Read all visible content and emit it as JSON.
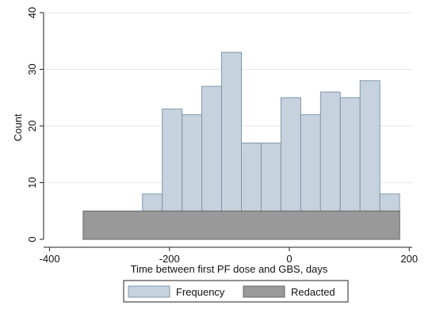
{
  "chart_data": {
    "type": "bar",
    "xlabel": "Time between first PF dose and GBS, days",
    "ylabel": "Count",
    "xlim": [
      -410,
      205
    ],
    "ylim": [
      0,
      40
    ],
    "xticks": [
      -400,
      -200,
      0,
      200
    ],
    "yticks": [
      0,
      10,
      20,
      30,
      40
    ],
    "grid": true,
    "legend_position": "bottom",
    "bin_width": 33,
    "series": [
      {
        "name": "Frequency",
        "color": "#c6d3df",
        "edge_color": "#7f96a9",
        "bins": [
          {
            "start": -245,
            "value": 8
          },
          {
            "start": -212,
            "value": 23
          },
          {
            "start": -179,
            "value": 22
          },
          {
            "start": -146,
            "value": 27
          },
          {
            "start": -113,
            "value": 33
          },
          {
            "start": -80,
            "value": 17
          },
          {
            "start": -47,
            "value": 17
          },
          {
            "start": -14,
            "value": 25
          },
          {
            "start": 19,
            "value": 22
          },
          {
            "start": 52,
            "value": 26
          },
          {
            "start": 85,
            "value": 25
          },
          {
            "start": 118,
            "value": 28
          },
          {
            "start": 151,
            "value": 8
          }
        ]
      },
      {
        "name": "Redacted",
        "color": "#999999",
        "edge_color": "#666666",
        "bins": [
          {
            "start": -344,
            "end": 184,
            "value": 5
          }
        ]
      }
    ]
  }
}
